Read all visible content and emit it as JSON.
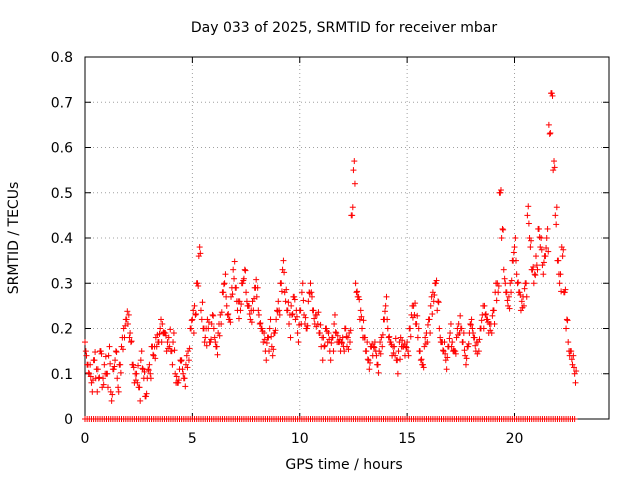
{
  "chart_data": {
    "type": "scatter",
    "title": "Day 033 of 2025, SRMTID for receiver mbar",
    "xlabel": "GPS time / hours",
    "ylabel": "SRMTID / TECUs",
    "xlim": [
      0,
      24.4
    ],
    "ylim": [
      0,
      0.8
    ],
    "xticks": [
      0,
      5,
      10,
      15,
      20
    ],
    "xtick_labels": [
      "0",
      "5",
      "10",
      "15",
      "20"
    ],
    "yticks": [
      0,
      0.1,
      0.2,
      0.3,
      0.4,
      0.5,
      0.6,
      0.7,
      0.8
    ],
    "ytick_labels": [
      "0",
      "0.1",
      "0.2",
      "0.3",
      "0.4",
      "0.5",
      "0.6",
      "0.7",
      "0.8"
    ],
    "grid": true,
    "marker": "+",
    "series": [
      {
        "name": "SRMTID",
        "color": "#ff0000",
        "x": [
          0.0,
          0.1,
          0.2,
          0.3,
          0.4,
          0.5,
          0.6,
          0.7,
          0.8,
          0.9,
          1.0,
          1.1,
          1.2,
          1.3,
          1.4,
          1.5,
          1.6,
          1.7,
          1.8,
          1.9,
          2.0,
          2.1,
          2.2,
          2.3,
          2.4,
          2.5,
          2.6,
          2.7,
          2.8,
          2.9,
          3.0,
          3.1,
          3.2,
          3.3,
          3.4,
          3.5,
          3.6,
          3.7,
          3.8,
          3.9,
          4.0,
          4.1,
          4.2,
          4.3,
          4.4,
          4.5,
          4.6,
          4.7,
          4.8,
          4.9,
          5.0,
          5.1,
          5.2,
          5.3,
          5.4,
          5.5,
          5.6,
          5.7,
          5.8,
          5.9,
          6.0,
          6.1,
          6.2,
          6.3,
          6.4,
          6.5,
          6.6,
          6.7,
          6.8,
          6.9,
          7.0,
          7.1,
          7.2,
          7.3,
          7.4,
          7.5,
          7.6,
          7.7,
          7.8,
          7.9,
          8.0,
          8.1,
          8.2,
          8.3,
          8.4,
          8.5,
          8.6,
          8.7,
          8.8,
          8.9,
          9.0,
          9.1,
          9.2,
          9.3,
          9.4,
          9.5,
          9.6,
          9.7,
          9.8,
          9.9,
          10.0,
          10.1,
          10.2,
          10.3,
          10.4,
          10.5,
          10.6,
          10.7,
          10.8,
          10.9,
          11.0,
          11.1,
          11.2,
          11.3,
          11.4,
          11.5,
          11.6,
          11.7,
          11.8,
          11.9,
          12.0,
          12.1,
          12.2,
          12.3,
          12.4,
          12.5,
          12.6,
          12.7,
          12.8,
          12.9,
          13.0,
          13.1,
          13.2,
          13.3,
          13.4,
          13.5,
          13.6,
          13.7,
          13.8,
          13.9,
          14.0,
          14.1,
          14.2,
          14.3,
          14.4,
          14.5,
          14.6,
          14.7,
          14.8,
          14.9,
          15.0,
          15.1,
          15.2,
          15.3,
          15.4,
          15.5,
          15.6,
          15.7,
          15.8,
          15.9,
          16.0,
          16.1,
          16.2,
          16.3,
          16.4,
          16.5,
          16.6,
          16.7,
          16.8,
          16.9,
          17.0,
          17.1,
          17.2,
          17.3,
          17.4,
          17.5,
          17.6,
          17.7,
          17.8,
          17.9,
          18.0,
          18.1,
          18.2,
          18.3,
          18.4,
          18.5,
          18.6,
          18.7,
          18.8,
          18.9,
          19.0,
          19.1,
          19.2,
          19.3,
          19.4,
          19.5,
          19.6,
          19.7,
          19.8,
          19.9,
          20.0,
          20.1,
          20.2,
          20.3,
          20.4,
          20.5,
          20.6,
          20.7,
          20.8,
          20.9,
          21.0,
          21.1,
          21.2,
          21.3,
          21.4,
          21.5,
          21.6,
          21.7,
          21.8,
          21.9,
          22.0,
          22.1,
          22.2,
          22.3,
          22.4,
          22.5,
          22.6,
          22.7,
          22.8
        ],
        "y": [
          0.17,
          0.12,
          0.1,
          0.08,
          0.13,
          0.09,
          0.11,
          0.15,
          0.07,
          0.12,
          0.1,
          0.14,
          0.06,
          0.11,
          0.13,
          0.09,
          0.12,
          0.16,
          0.2,
          0.22,
          0.21,
          0.19,
          0.12,
          0.08,
          0.1,
          0.07,
          0.13,
          0.11,
          0.05,
          0.09,
          0.12,
          0.16,
          0.14,
          0.18,
          0.17,
          0.2,
          0.21,
          0.19,
          0.15,
          0.18,
          0.15,
          0.17,
          0.1,
          0.08,
          0.11,
          0.13,
          0.09,
          0.12,
          0.15,
          0.2,
          0.22,
          0.25,
          0.3,
          0.36,
          0.24,
          0.2,
          0.18,
          0.22,
          0.17,
          0.21,
          0.2,
          0.16,
          0.19,
          0.23,
          0.28,
          0.3,
          0.25,
          0.22,
          0.27,
          0.33,
          0.29,
          0.24,
          0.26,
          0.3,
          0.31,
          0.28,
          0.25,
          0.22,
          0.26,
          0.29,
          0.27,
          0.23,
          0.2,
          0.17,
          0.15,
          0.18,
          0.2,
          0.16,
          0.19,
          0.22,
          0.26,
          0.3,
          0.33,
          0.28,
          0.24,
          0.21,
          0.25,
          0.27,
          0.22,
          0.19,
          0.24,
          0.28,
          0.23,
          0.2,
          0.26,
          0.3,
          0.24,
          0.21,
          0.23,
          0.19,
          0.16,
          0.18,
          0.2,
          0.17,
          0.15,
          0.18,
          0.21,
          0.19,
          0.17,
          0.15,
          0.18,
          0.2,
          0.16,
          0.19,
          0.45,
          0.55,
          0.3,
          0.27,
          0.22,
          0.2,
          0.18,
          0.15,
          0.13,
          0.16,
          0.14,
          0.17,
          0.12,
          0.15,
          0.18,
          0.22,
          0.25,
          0.2,
          0.17,
          0.14,
          0.16,
          0.13,
          0.15,
          0.18,
          0.16,
          0.14,
          0.17,
          0.2,
          0.23,
          0.25,
          0.21,
          0.18,
          0.15,
          0.12,
          0.16,
          0.19,
          0.22,
          0.25,
          0.28,
          0.3,
          0.24,
          0.2,
          0.17,
          0.15,
          0.13,
          0.16,
          0.19,
          0.17,
          0.15,
          0.18,
          0.21,
          0.2,
          0.17,
          0.14,
          0.16,
          0.19,
          0.22,
          0.18,
          0.15,
          0.17,
          0.2,
          0.23,
          0.25,
          0.22,
          0.19,
          0.21,
          0.24,
          0.28,
          0.3,
          0.5,
          0.4,
          0.33,
          0.28,
          0.25,
          0.3,
          0.35,
          0.38,
          0.32,
          0.28,
          0.24,
          0.27,
          0.3,
          0.45,
          0.4,
          0.33,
          0.3,
          0.36,
          0.42,
          0.38,
          0.34,
          0.36,
          0.4,
          0.65,
          0.72,
          0.55,
          0.45,
          0.35,
          0.3,
          0.38,
          0.28,
          0.2,
          0.17,
          0.15,
          0.12,
          0.1
        ]
      }
    ],
    "baseline_label": "zero-value markers at y=0 across the full time range"
  }
}
